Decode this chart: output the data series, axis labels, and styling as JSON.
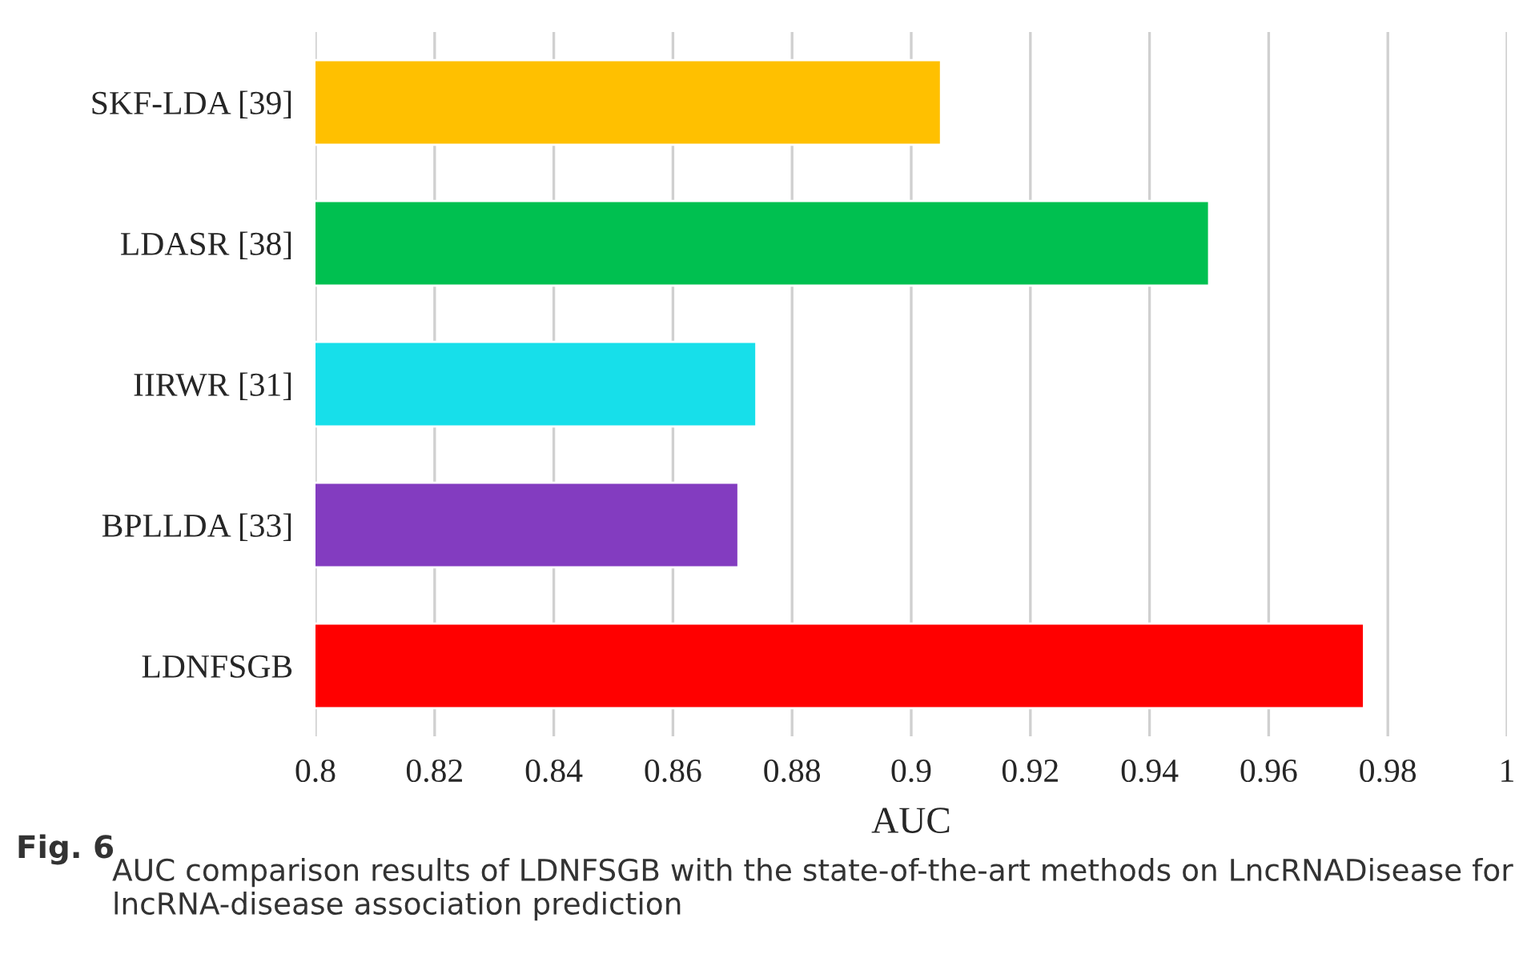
{
  "chart_data": {
    "type": "bar",
    "orientation": "horizontal",
    "xlabel": "AUC",
    "categories": [
      "SKF-LDA [39]",
      "LDASR [38]",
      "IIRWR [31]",
      "BPLLDA [33]",
      "LDNFSGB"
    ],
    "values": [
      0.905,
      0.95,
      0.874,
      0.871,
      0.976
    ],
    "colors": [
      "#ffc000",
      "#00c050",
      "#17dfea",
      "#833cc0",
      "#ff0000"
    ],
    "xlim": [
      0.8,
      1
    ],
    "xticks": [
      0.8,
      0.82,
      0.84,
      0.86,
      0.88,
      0.9,
      0.92,
      0.94,
      0.96,
      0.98,
      1
    ],
    "grid": "x",
    "legend": false,
    "annotations": [
      "Fig. 6",
      "AUC comparison results of LDNFSGB with the state-of-the-art methods on LncRNADisease for lncRNA-disease association prediction"
    ]
  }
}
